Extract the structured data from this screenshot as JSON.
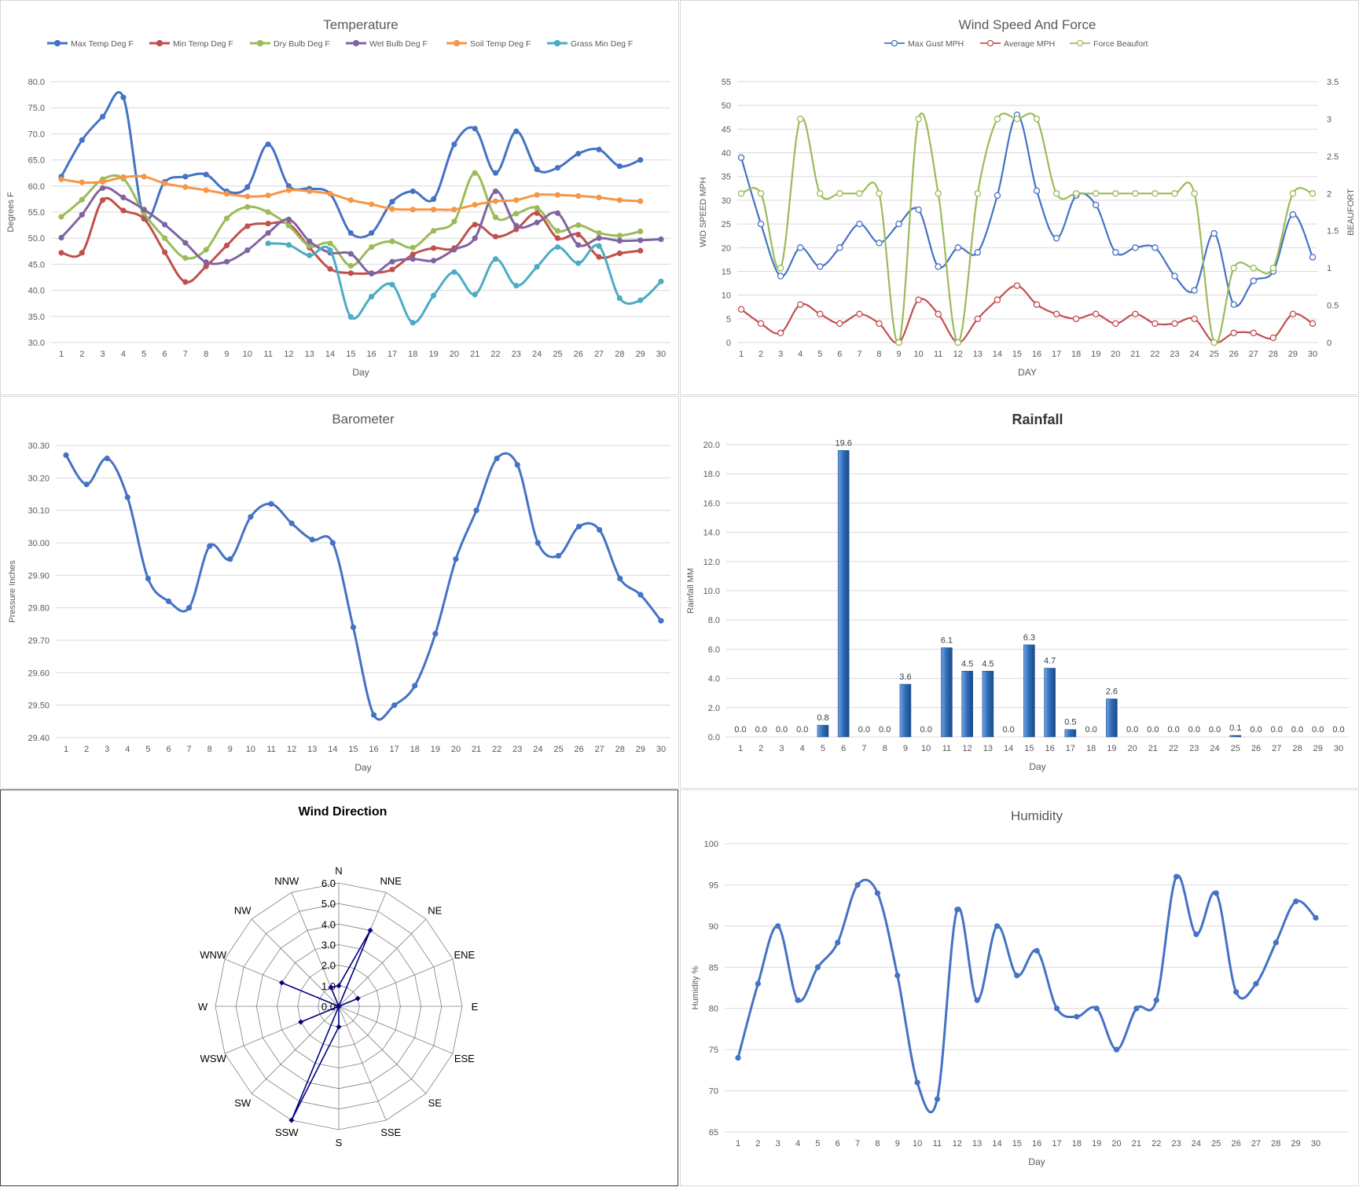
{
  "days": [
    1,
    2,
    3,
    4,
    5,
    6,
    7,
    8,
    9,
    10,
    11,
    12,
    13,
    14,
    15,
    16,
    17,
    18,
    19,
    20,
    21,
    22,
    23,
    24,
    25,
    26,
    27,
    28,
    29,
    30
  ],
  "temperature": {
    "title": "Temperature",
    "xlabel": "Day",
    "ylabel": "Degrees F",
    "ylim": [
      30,
      80
    ],
    "yticks": [
      "30.0",
      "35.0",
      "40.0",
      "45.0",
      "50.0",
      "55.0",
      "60.0",
      "65.0",
      "70.0",
      "75.0",
      "80.0"
    ],
    "legend_position": "top",
    "chart_data": {
      "type": "line",
      "x": [
        1,
        2,
        3,
        4,
        5,
        6,
        7,
        8,
        9,
        10,
        11,
        12,
        13,
        14,
        15,
        16,
        17,
        18,
        19,
        20,
        21,
        22,
        23,
        24,
        25,
        26,
        27,
        28,
        29,
        30
      ],
      "series": [
        {
          "name": "Max Temp Deg F",
          "color": "#4472c4",
          "values": [
            61.8,
            68.8,
            73.3,
            77.0,
            54.0,
            60.8,
            61.8,
            62.2,
            59.0,
            59.8,
            68.0,
            60.0,
            59.5,
            58.5,
            51.0,
            51.0,
            57.0,
            59.0,
            57.5,
            68.0,
            71.0,
            62.5,
            70.5,
            63.2,
            63.5,
            66.2,
            67.0,
            63.8,
            65.0,
            null
          ]
        },
        {
          "name": "Min Temp Deg F",
          "color": "#c0504d",
          "values": [
            47.2,
            47.2,
            57.3,
            55.3,
            53.7,
            47.3,
            41.6,
            44.6,
            48.6,
            52.3,
            52.8,
            52.7,
            48.2,
            44.1,
            43.3,
            43.3,
            44.0,
            46.9,
            48.1,
            48.1,
            52.6,
            50.3,
            51.7,
            54.8,
            50.0,
            50.7,
            46.4,
            47.1,
            47.6,
            null
          ]
        },
        {
          "name": "Dry Bulb Deg F",
          "color": "#9bbb59",
          "values": [
            54.1,
            57.4,
            61.3,
            61.4,
            54.8,
            50.0,
            46.2,
            47.8,
            53.8,
            56.0,
            55.0,
            52.4,
            48.5,
            49.0,
            44.7,
            48.3,
            49.4,
            48.2,
            51.4,
            53.2,
            62.5,
            54.0,
            54.7,
            55.8,
            51.4,
            52.5,
            51.0,
            50.5,
            51.3,
            null
          ]
        },
        {
          "name": "Wet Bulb Deg F",
          "color": "#8064a2",
          "values": [
            50.1,
            54.5,
            59.6,
            57.8,
            55.5,
            52.6,
            49.1,
            45.4,
            45.5,
            47.7,
            51.0,
            53.6,
            49.4,
            47.2,
            47.0,
            43.2,
            45.5,
            46.0,
            45.7,
            47.8,
            50.0,
            59.0,
            52.4,
            53.0,
            54.8,
            48.7,
            50.0,
            49.5,
            49.6,
            49.8
          ]
        },
        {
          "name": "Soil Temp Deg F",
          "color": "#f79646",
          "values": [
            61.3,
            60.7,
            60.8,
            61.7,
            61.8,
            60.5,
            59.8,
            59.2,
            58.5,
            58.0,
            58.2,
            59.2,
            59.0,
            58.5,
            57.3,
            56.5,
            55.6,
            55.5,
            55.5,
            55.5,
            56.4,
            57.1,
            57.3,
            58.3,
            58.3,
            58.1,
            57.8,
            57.3,
            57.1,
            null
          ]
        },
        {
          "name": "Grass Min Deg F",
          "color": "#4bacc6",
          "values": [
            null,
            null,
            null,
            null,
            null,
            null,
            null,
            null,
            null,
            null,
            49.0,
            48.7,
            46.7,
            47.7,
            34.9,
            38.8,
            41.1,
            33.8,
            39.0,
            43.5,
            39.2,
            46.0,
            40.9,
            44.5,
            48.3,
            45.2,
            48.5,
            38.5,
            38.1,
            41.7
          ]
        }
      ]
    }
  },
  "wind": {
    "title": "Wind Speed And Force",
    "xlabel": "DAY",
    "ylabel_left": "WID SPEED MPH",
    "ylabel_right": "BEAUFORT",
    "ylim_left": [
      0,
      55
    ],
    "ylim_right": [
      0,
      3.5
    ],
    "yticks_left": [
      "0",
      "5",
      "10",
      "15",
      "20",
      "25",
      "30",
      "35",
      "40",
      "45",
      "50",
      "55"
    ],
    "yticks_right": [
      "0",
      "0.5",
      "1",
      "1.5",
      "2",
      "2.5",
      "3",
      "3.5"
    ],
    "legend_position": "top",
    "chart_data": {
      "type": "line",
      "x": [
        1,
        2,
        3,
        4,
        5,
        6,
        7,
        8,
        9,
        10,
        11,
        12,
        13,
        14,
        15,
        16,
        17,
        18,
        19,
        20,
        21,
        22,
        23,
        24,
        25,
        26,
        27,
        28,
        29,
        30
      ],
      "series": [
        {
          "name": "Max Gust MPH",
          "axis": "left",
          "color": "#4472c4",
          "values": [
            39,
            25,
            14,
            20,
            16,
            20,
            25,
            21,
            25,
            28,
            16,
            20,
            19,
            31,
            48,
            32,
            22,
            31,
            29,
            19,
            20,
            20,
            14,
            11,
            23,
            8,
            13,
            15,
            27,
            18
          ]
        },
        {
          "name": "Average MPH",
          "axis": "left",
          "color": "#c0504d",
          "values": [
            7,
            4,
            2,
            8,
            6,
            4,
            6,
            4,
            0,
            9,
            6,
            0,
            5,
            9,
            12,
            8,
            6,
            5,
            6,
            4,
            6,
            4,
            4,
            5,
            0,
            2,
            2,
            1,
            6,
            4
          ]
        },
        {
          "name": "Force Beaufort",
          "axis": "right",
          "color": "#9bbb59",
          "values": [
            2,
            2,
            1,
            3,
            2,
            2,
            2,
            2,
            0,
            3,
            2,
            0,
            2,
            3,
            3,
            3,
            2,
            2,
            2,
            2,
            2,
            2,
            2,
            2,
            0,
            1,
            1,
            1,
            2,
            2
          ]
        }
      ]
    }
  },
  "barometer": {
    "title": "Barometer",
    "xlabel": "Day",
    "ylabel": "Pressure Inches",
    "ylim": [
      29.4,
      30.3
    ],
    "yticks": [
      "29.40",
      "29.50",
      "29.60",
      "29.70",
      "29.80",
      "29.90",
      "30.00",
      "30.10",
      "30.20",
      "30.30"
    ],
    "chart_data": {
      "type": "line",
      "x": [
        1,
        2,
        3,
        4,
        5,
        6,
        7,
        8,
        9,
        10,
        11,
        12,
        13,
        14,
        15,
        16,
        17,
        18,
        19,
        20,
        21,
        22,
        23,
        24,
        25,
        26,
        27,
        28,
        29,
        30
      ],
      "series": [
        {
          "name": "",
          "color": "#4472c4",
          "values": [
            30.27,
            30.18,
            30.26,
            30.14,
            29.89,
            29.82,
            29.8,
            29.99,
            29.95,
            30.08,
            30.12,
            30.06,
            30.01,
            30.0,
            29.74,
            29.47,
            29.5,
            29.56,
            29.72,
            29.95,
            30.1,
            30.26,
            30.24,
            30.0,
            29.96,
            30.05,
            30.04,
            29.89,
            29.84,
            29.76
          ]
        }
      ]
    }
  },
  "rainfall": {
    "title": "Rainfall",
    "xlabel": "Day",
    "ylabel": "Rainfall MM",
    "ylim": [
      0,
      20
    ],
    "yticks": [
      "0.0",
      "2.0",
      "4.0",
      "6.0",
      "8.0",
      "10.0",
      "12.0",
      "14.0",
      "16.0",
      "18.0",
      "20.0"
    ],
    "chart_data": {
      "type": "bar",
      "categories": [
        1,
        2,
        3,
        4,
        5,
        6,
        7,
        8,
        9,
        10,
        11,
        12,
        13,
        14,
        15,
        16,
        17,
        18,
        19,
        20,
        21,
        22,
        23,
        24,
        25,
        26,
        27,
        28,
        29,
        30
      ],
      "values": [
        0.0,
        0.0,
        0.0,
        0.0,
        0.8,
        19.6,
        0.0,
        0.0,
        3.6,
        0.0,
        6.1,
        4.5,
        4.5,
        0.0,
        6.3,
        4.7,
        0.5,
        0.0,
        2.6,
        0.0,
        0.0,
        0.0,
        0.0,
        0.0,
        0.1,
        0.0,
        0.0,
        0.0,
        0.0,
        0.0
      ],
      "labels": [
        "0.0",
        "0.0",
        "0.0",
        "0.0",
        "0.8",
        "19.6",
        "0.0",
        "0.0",
        "3.6",
        "0.0",
        "6.1",
        "4.5",
        "4.5",
        "0.0",
        "6.3",
        "4.7",
        "0.5",
        "0.0",
        "2.6",
        "0.0",
        "0.0",
        "0.0",
        "0.0",
        "0.0",
        "0.1",
        "0.0",
        "0.0",
        "0.0",
        "0.0",
        "0.0"
      ],
      "color": "#2e6ab5"
    }
  },
  "wind_direction": {
    "title": "Wind Direction",
    "chart_data": {
      "type": "radar",
      "categories": [
        "N",
        "NNE",
        "NE",
        "ENE",
        "E",
        "ESE",
        "SE",
        "SSE",
        "S",
        "SSW",
        "SW",
        "WSW",
        "W",
        "WNW",
        "NW",
        "NNW"
      ],
      "values": [
        1,
        4,
        0,
        1,
        0,
        0,
        0,
        0,
        1,
        6,
        0,
        2,
        0,
        3,
        0,
        1
      ],
      "rlim": [
        0,
        6
      ],
      "rticks": [
        "0.0",
        "1.0",
        "2.0",
        "3.0",
        "4.0",
        "5.0",
        "6.0"
      ],
      "color": "#000080"
    }
  },
  "humidity": {
    "title": "Humidity",
    "xlabel": "Day",
    "ylabel": "Humidity %",
    "ylim": [
      65,
      100
    ],
    "yticks": [
      "65",
      "70",
      "75",
      "80",
      "85",
      "90",
      "95",
      "100"
    ],
    "chart_data": {
      "type": "line",
      "x": [
        1,
        2,
        3,
        4,
        5,
        6,
        7,
        8,
        9,
        10,
        11,
        12,
        13,
        14,
        15,
        16,
        17,
        18,
        19,
        20,
        21,
        22,
        23,
        24,
        25,
        26,
        27,
        28,
        29,
        30
      ],
      "series": [
        {
          "name": "",
          "color": "#4472c4",
          "values": [
            74,
            83,
            90,
            81,
            85,
            88,
            95,
            94,
            84,
            71,
            69,
            92,
            81,
            90,
            84,
            87,
            80,
            79,
            80,
            75,
            80,
            81,
            96,
            89,
            94,
            82,
            83,
            88,
            93,
            91
          ]
        }
      ]
    }
  }
}
